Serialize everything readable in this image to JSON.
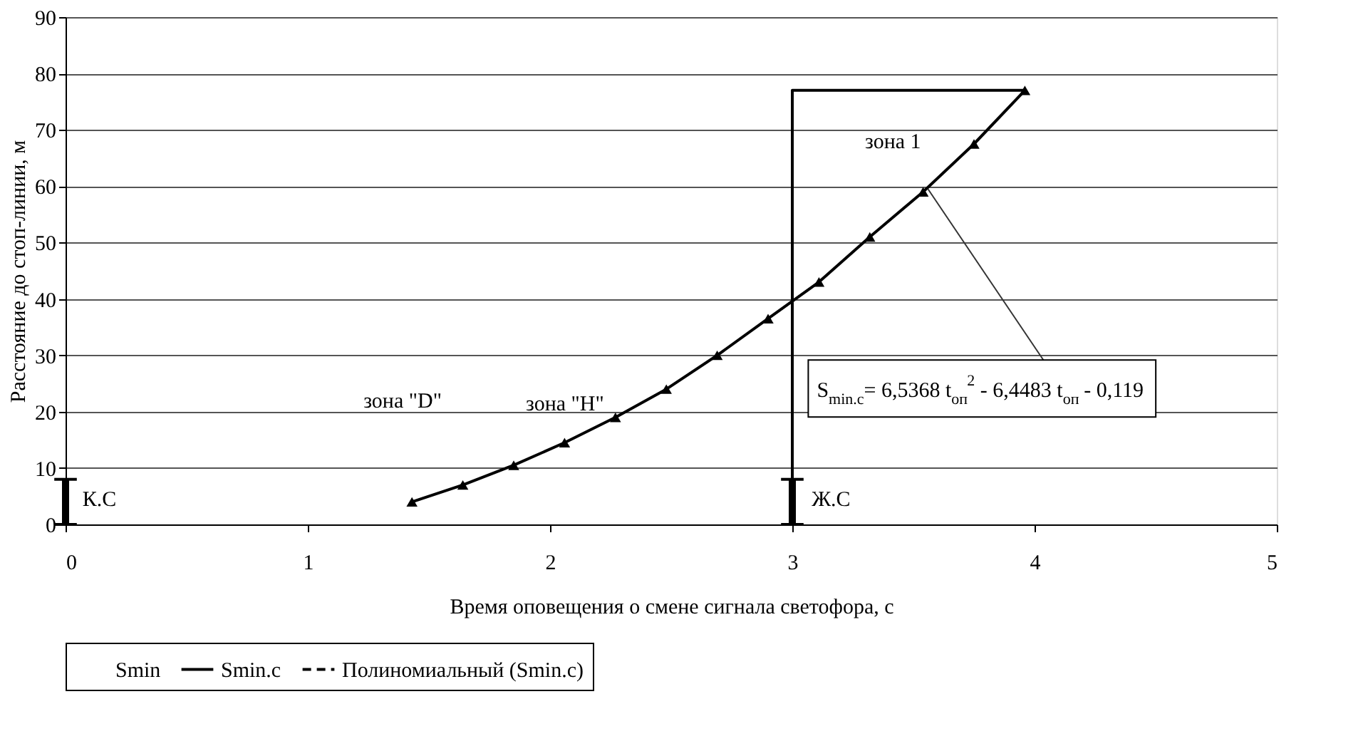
{
  "chart_data": {
    "type": "line",
    "xlabel": "Время оповещения о смене сигнала светофора, с",
    "ylabel": "Расстояние до стоп-линии, м",
    "xlim": [
      0,
      5
    ],
    "xticks": [
      0,
      1,
      2,
      3,
      4,
      5
    ],
    "ylim": [
      0,
      90
    ],
    "yticks": [
      0,
      10,
      20,
      30,
      40,
      50,
      60,
      70,
      80,
      90
    ],
    "grid": "y",
    "legend": "bottom",
    "series": [
      {
        "name": "Smin"
      },
      {
        "name": "Smin.c",
        "color": "#000000",
        "marker": "triangle",
        "line_style": "solid",
        "x": [
          1.43,
          1.64,
          1.85,
          2.06,
          2.27,
          2.48,
          2.69,
          2.9,
          3.11,
          3.32,
          3.54,
          3.75,
          3.96
        ],
        "values": [
          4,
          7,
          10.5,
          14.5,
          19,
          24,
          30,
          36.5,
          43,
          51,
          59,
          67.5,
          77
        ]
      },
      {
        "name": "Полиномиальный (Smin.c)",
        "color": "#000000",
        "line_style": "dashed"
      },
      {
        "type": "line",
        "color": "#000000",
        "marker": "none",
        "line_style": "solid",
        "x": [
          3,
          3,
          3.96
        ],
        "values": [
          0,
          77,
          77
        ]
      },
      {
        "type": "bar",
        "color": "#000000",
        "x": [
          0,
          3
        ],
        "values": [
          8,
          8
        ],
        "base": [
          0,
          0
        ]
      }
    ],
    "annotations": [
      "зона \"D\"",
      "зона \"H\"",
      "зона 1",
      "К.С",
      "Ж.С",
      {
        "text": "S$_{min.c}$= 6,5368 t$_{оп}$$^{2}$ - 6,4483 t$_{оп}$ - 0,119",
        "x": 3.56,
        "y": 59.5
      }
    ]
  }
}
